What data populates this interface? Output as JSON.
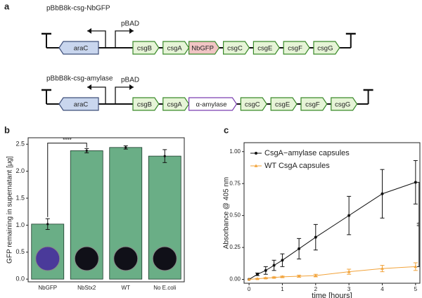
{
  "panels": [
    "a",
    "b",
    "c"
  ],
  "constructs": [
    {
      "title": "pBbB8k-csg-NbGFP",
      "promoter": "pBAD",
      "genes": [
        {
          "label": "araC",
          "color": "#c9d6ee",
          "stroke": "#3f4f7a"
        },
        {
          "label": "csgB",
          "color": "#e6f4d7",
          "stroke": "#3a8a2a"
        },
        {
          "label": "csgA",
          "color": "#e6f4d7",
          "stroke": "#3a8a2a"
        },
        {
          "label": "NbGFP",
          "color": "#f1c4c4",
          "stroke": "#3a8a2a"
        },
        {
          "label": "csgC",
          "color": "#e6f4d7",
          "stroke": "#3a8a2a"
        },
        {
          "label": "csgE",
          "color": "#e6f4d7",
          "stroke": "#3a8a2a"
        },
        {
          "label": "csgF",
          "color": "#e6f4d7",
          "stroke": "#3a8a2a"
        },
        {
          "label": "csgG",
          "color": "#e6f4d7",
          "stroke": "#3a8a2a"
        }
      ]
    },
    {
      "title": "pBbB8k-csg-amylase",
      "promoter": "pBAD",
      "genes": [
        {
          "label": "araC",
          "color": "#c9d6ee",
          "stroke": "#3f4f7a"
        },
        {
          "label": "csgB",
          "color": "#e6f4d7",
          "stroke": "#3a8a2a"
        },
        {
          "label": "csgA",
          "color": "#e6f4d7",
          "stroke": "#3a8a2a"
        },
        {
          "label": "α-amylase",
          "color": "#ffffff",
          "stroke": "#7a3fb0"
        },
        {
          "label": "csgC",
          "color": "#e6f4d7",
          "stroke": "#3a8a2a"
        },
        {
          "label": "csgE",
          "color": "#e6f4d7",
          "stroke": "#3a8a2a"
        },
        {
          "label": "csgF",
          "color": "#e6f4d7",
          "stroke": "#3a8a2a"
        },
        {
          "label": "csgG",
          "color": "#e6f4d7",
          "stroke": "#3a8a2a"
        }
      ]
    }
  ],
  "chart_data": [
    {
      "type": "bar",
      "ylabel": "GFP remaining in supernatant [μg]",
      "categories": [
        "NbGFP",
        "NbStx2",
        "WT",
        "No E.coli"
      ],
      "values": [
        1.02,
        2.38,
        2.44,
        2.28
      ],
      "errors": [
        0.1,
        0.04,
        0.03,
        0.12
      ],
      "color": "#6aae86",
      "ylim": [
        -0.05,
        2.62
      ],
      "yticks": [
        {
          "value": 0,
          "label": "0.0"
        },
        0.5,
        {
          "value": 1,
          "label": "1.0"
        },
        1.5,
        {
          "value": 2,
          "label": "2.0"
        },
        2.5
      ],
      "annotation": "****"
    },
    {
      "type": "line",
      "xlabel": "time [hours]",
      "ylabel": "Absorbance @ 405 nm",
      "x": [
        0,
        0.25,
        0.5,
        0.75,
        1,
        1.5,
        2,
        3,
        4,
        5
      ],
      "series": [
        {
          "name": "CsgA−amylase capsules",
          "color": "#111111",
          "values": [
            0,
            0.04,
            0.07,
            0.11,
            0.15,
            0.24,
            0.33,
            0.5,
            0.67,
            0.76
          ],
          "errors": [
            0,
            0.01,
            0.03,
            0.04,
            0.05,
            0.08,
            0.1,
            0.15,
            0.19,
            0.17
          ]
        },
        {
          "name": "WT CsgA capsules",
          "color": "#f2a33a",
          "values": [
            0,
            0.005,
            0.01,
            0.015,
            0.02,
            0.025,
            0.03,
            0.06,
            0.085,
            0.1
          ],
          "errors": [
            0,
            0.003,
            0.004,
            0.005,
            0.006,
            0.008,
            0.01,
            0.02,
            0.025,
            0.03
          ]
        }
      ],
      "xlim": [
        -0.15,
        5.13
      ],
      "ylim": [
        -0.03,
        1.07
      ],
      "xticks": [
        0,
        1,
        2,
        3,
        4,
        5
      ],
      "yticks": [
        {
          "value": 0,
          "label": "0.00"
        },
        0.25,
        {
          "value": 0.5,
          "label": "0.50"
        },
        0.75,
        {
          "value": 1,
          "label": "1.00"
        }
      ],
      "annotation": "**"
    }
  ]
}
